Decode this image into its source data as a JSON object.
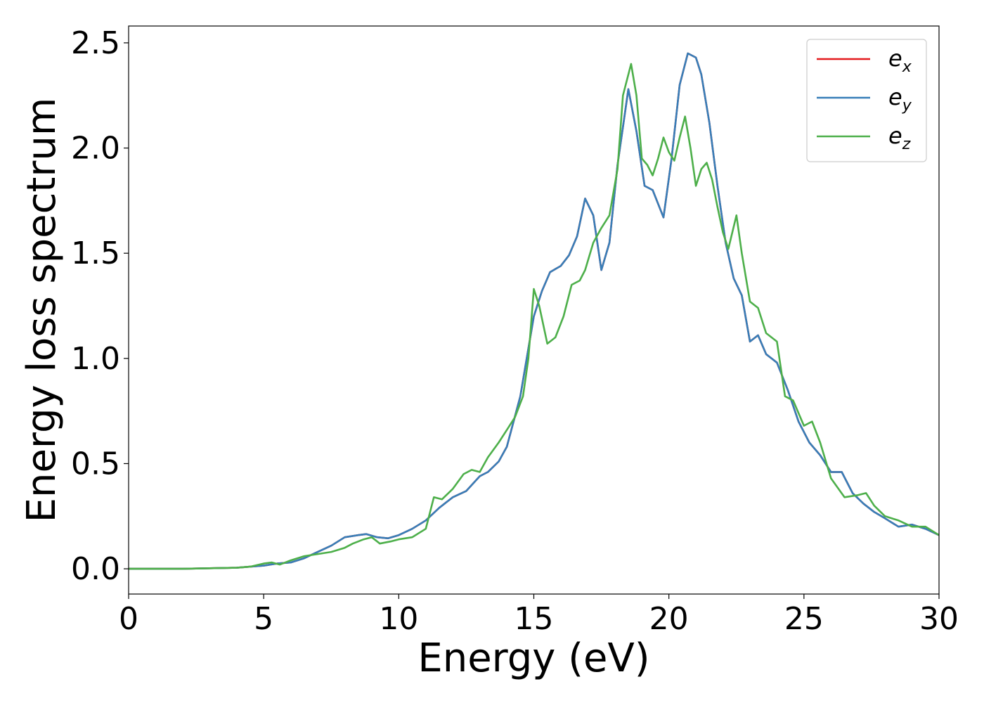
{
  "chart_data": {
    "type": "line",
    "xlabel": "Energy (eV)",
    "ylabel": "Energy loss spectrum",
    "xlim": [
      0,
      30
    ],
    "ylim": [
      -0.12,
      2.58
    ],
    "xticks": [
      0,
      5,
      10,
      15,
      20,
      25,
      30
    ],
    "xtick_labels": [
      "0",
      "5",
      "10",
      "15",
      "20",
      "25",
      "30"
    ],
    "yticks": [
      0.0,
      0.5,
      1.0,
      1.5,
      2.0,
      2.5
    ],
    "ytick_labels": [
      "0.0",
      "0.5",
      "1.0",
      "1.5",
      "2.0",
      "2.5"
    ],
    "grid": false,
    "legend_position": "top-right",
    "series": [
      {
        "name": "e_x",
        "legend_base": "e",
        "legend_sub": "x",
        "color": "#e41a1c",
        "x": [
          0,
          2,
          4,
          4.5,
          5,
          5.5,
          6,
          6.5,
          7,
          7.5,
          8,
          8.5,
          8.8,
          9.2,
          9.6,
          10,
          10.5,
          11,
          11.5,
          12,
          12.5,
          13,
          13.3,
          13.7,
          14,
          14.5,
          15,
          15.3,
          15.6,
          16,
          16.3,
          16.6,
          16.9,
          17.2,
          17.5,
          17.8,
          18.1,
          18.5,
          18.8,
          19.1,
          19.4,
          19.8,
          20.1,
          20.4,
          20.7,
          21,
          21.2,
          21.5,
          21.8,
          22.1,
          22.4,
          22.7,
          23,
          23.3,
          23.6,
          24,
          24.4,
          24.8,
          25.2,
          25.6,
          26,
          26.4,
          26.8,
          27.2,
          27.6,
          28,
          28.5,
          29,
          29.5,
          30
        ],
        "y": [
          0,
          0,
          0.005,
          0.01,
          0.015,
          0.025,
          0.03,
          0.05,
          0.08,
          0.11,
          0.15,
          0.16,
          0.165,
          0.15,
          0.145,
          0.16,
          0.19,
          0.23,
          0.29,
          0.34,
          0.37,
          0.44,
          0.46,
          0.51,
          0.58,
          0.82,
          1.2,
          1.32,
          1.41,
          1.44,
          1.49,
          1.58,
          1.76,
          1.68,
          1.42,
          1.55,
          1.92,
          2.28,
          2.08,
          1.82,
          1.8,
          1.67,
          1.95,
          2.3,
          2.45,
          2.43,
          2.35,
          2.12,
          1.82,
          1.55,
          1.38,
          1.3,
          1.08,
          1.11,
          1.02,
          0.98,
          0.85,
          0.7,
          0.6,
          0.54,
          0.46,
          0.46,
          0.36,
          0.31,
          0.27,
          0.24,
          0.2,
          0.21,
          0.19,
          0.16
        ]
      },
      {
        "name": "e_y",
        "legend_base": "e",
        "legend_sub": "y",
        "color": "#377eb8",
        "x": [
          0,
          2,
          4,
          4.5,
          5,
          5.5,
          6,
          6.5,
          7,
          7.5,
          8,
          8.5,
          8.8,
          9.2,
          9.6,
          10,
          10.5,
          11,
          11.5,
          12,
          12.5,
          13,
          13.3,
          13.7,
          14,
          14.5,
          15,
          15.3,
          15.6,
          16,
          16.3,
          16.6,
          16.9,
          17.2,
          17.5,
          17.8,
          18.1,
          18.5,
          18.8,
          19.1,
          19.4,
          19.8,
          20.1,
          20.4,
          20.7,
          21,
          21.2,
          21.5,
          21.8,
          22.1,
          22.4,
          22.7,
          23,
          23.3,
          23.6,
          24,
          24.4,
          24.8,
          25.2,
          25.6,
          26,
          26.4,
          26.8,
          27.2,
          27.6,
          28,
          28.5,
          29,
          29.5,
          30
        ],
        "y": [
          0,
          0,
          0.005,
          0.01,
          0.015,
          0.025,
          0.03,
          0.05,
          0.08,
          0.11,
          0.15,
          0.16,
          0.165,
          0.15,
          0.145,
          0.16,
          0.19,
          0.23,
          0.29,
          0.34,
          0.37,
          0.44,
          0.46,
          0.51,
          0.58,
          0.82,
          1.2,
          1.32,
          1.41,
          1.44,
          1.49,
          1.58,
          1.76,
          1.68,
          1.42,
          1.55,
          1.92,
          2.28,
          2.08,
          1.82,
          1.8,
          1.67,
          1.95,
          2.3,
          2.45,
          2.43,
          2.35,
          2.12,
          1.82,
          1.55,
          1.38,
          1.3,
          1.08,
          1.11,
          1.02,
          0.98,
          0.85,
          0.7,
          0.6,
          0.54,
          0.46,
          0.46,
          0.36,
          0.31,
          0.27,
          0.24,
          0.2,
          0.21,
          0.19,
          0.16
        ]
      },
      {
        "name": "e_z",
        "legend_base": "e",
        "legend_sub": "z",
        "color": "#4daf4a",
        "x": [
          0,
          2,
          4,
          4.5,
          5,
          5.3,
          5.6,
          6,
          6.5,
          7,
          7.5,
          8,
          8.3,
          8.7,
          9,
          9.3,
          9.7,
          10,
          10.5,
          11,
          11.3,
          11.6,
          12,
          12.4,
          12.7,
          13,
          13.3,
          13.7,
          14,
          14.3,
          14.6,
          14.8,
          15,
          15.2,
          15.5,
          15.8,
          16.1,
          16.4,
          16.7,
          16.9,
          17.2,
          17.5,
          17.8,
          18.1,
          18.3,
          18.6,
          18.8,
          19,
          19.2,
          19.4,
          19.6,
          19.8,
          20,
          20.2,
          20.4,
          20.6,
          20.8,
          21,
          21.2,
          21.4,
          21.6,
          21.8,
          22,
          22.2,
          22.5,
          22.7,
          23,
          23.3,
          23.6,
          24,
          24.3,
          24.6,
          25,
          25.3,
          25.6,
          26,
          26.5,
          27,
          27.3,
          27.6,
          28,
          28.5,
          29,
          29.5,
          30
        ],
        "y": [
          0,
          0,
          0.005,
          0.01,
          0.025,
          0.03,
          0.02,
          0.04,
          0.06,
          0.07,
          0.08,
          0.1,
          0.12,
          0.14,
          0.15,
          0.12,
          0.13,
          0.14,
          0.15,
          0.19,
          0.34,
          0.33,
          0.38,
          0.45,
          0.47,
          0.46,
          0.53,
          0.6,
          0.66,
          0.72,
          0.82,
          1.0,
          1.33,
          1.25,
          1.07,
          1.1,
          1.2,
          1.35,
          1.37,
          1.42,
          1.55,
          1.62,
          1.68,
          1.9,
          2.25,
          2.4,
          2.25,
          1.95,
          1.92,
          1.87,
          1.95,
          2.05,
          1.98,
          1.94,
          2.05,
          2.15,
          2.0,
          1.82,
          1.9,
          1.93,
          1.85,
          1.72,
          1.6,
          1.52,
          1.68,
          1.5,
          1.27,
          1.24,
          1.12,
          1.08,
          0.82,
          0.8,
          0.68,
          0.7,
          0.6,
          0.43,
          0.34,
          0.35,
          0.36,
          0.3,
          0.25,
          0.23,
          0.2,
          0.2,
          0.16
        ]
      }
    ]
  }
}
